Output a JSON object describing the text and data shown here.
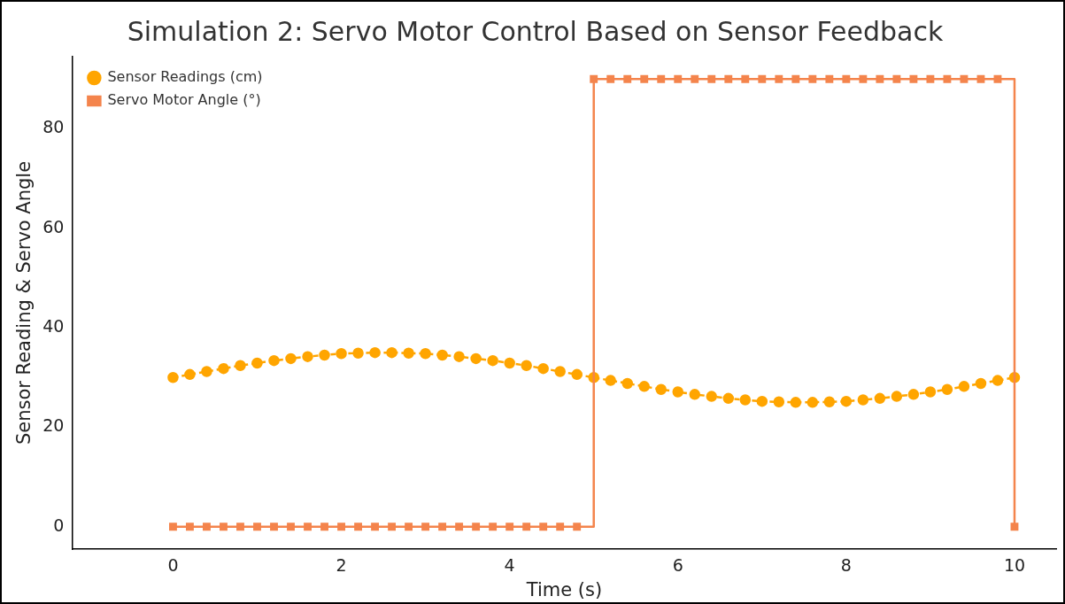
{
  "chart_data": {
    "type": "line",
    "title": "Simulation 2: Servo Motor Control Based on Sensor Feedback",
    "xlabel": "Time (s)",
    "ylabel": "Sensor Reading & Servo Angle",
    "x": [
      0,
      0.2,
      0.4,
      0.6,
      0.8,
      1,
      1.2,
      1.4,
      1.6,
      1.8,
      2,
      2.2,
      2.4,
      2.6,
      2.8,
      3,
      3.2,
      3.4,
      3.6,
      3.8,
      4,
      4.2,
      4.4,
      4.6,
      4.8,
      5,
      5.2,
      5.4,
      5.6,
      5.8,
      6,
      6.2,
      6.4,
      6.6,
      6.8,
      7,
      7.2,
      7.4,
      7.6,
      7.8,
      8,
      8.2,
      8.4,
      8.6,
      8.8,
      9,
      9.2,
      9.4,
      9.6,
      9.8,
      10
    ],
    "series": [
      {
        "name": "Sensor Readings (cm)",
        "type": "line",
        "color": "#ffa500",
        "marker": "circle",
        "line_style": "dashed",
        "values": [
          30.0,
          30.6,
          31.2,
          31.8,
          32.4,
          32.9,
          33.4,
          33.8,
          34.2,
          34.5,
          34.8,
          34.9,
          35.0,
          35.0,
          34.9,
          34.8,
          34.5,
          34.2,
          33.8,
          33.4,
          32.9,
          32.4,
          31.8,
          31.2,
          30.6,
          30.0,
          29.4,
          28.8,
          28.2,
          27.6,
          27.1,
          26.6,
          26.2,
          25.8,
          25.5,
          25.2,
          25.1,
          25.0,
          25.0,
          25.1,
          25.2,
          25.5,
          25.8,
          26.2,
          26.6,
          27.1,
          27.6,
          28.2,
          28.8,
          29.4,
          30.0
        ]
      },
      {
        "name": "Servo Motor Angle (°)",
        "type": "step",
        "color": "#f4844c",
        "marker": "square",
        "line_style": "solid",
        "values": [
          0,
          0,
          0,
          0,
          0,
          0,
          0,
          0,
          0,
          0,
          0,
          0,
          0,
          0,
          0,
          0,
          0,
          0,
          0,
          0,
          0,
          0,
          0,
          0,
          0,
          90,
          90,
          90,
          90,
          90,
          90,
          90,
          90,
          90,
          90,
          90,
          90,
          90,
          90,
          90,
          90,
          90,
          90,
          90,
          90,
          90,
          90,
          90,
          90,
          90,
          0
        ]
      }
    ],
    "xlim": [
      -1.2,
      10.5
    ],
    "xticks": [
      0,
      2,
      4,
      6,
      8,
      10
    ],
    "ylim": [
      -4.5,
      94.5
    ],
    "yticks": [
      0,
      20,
      40,
      60,
      80
    ],
    "grid": false,
    "legend": "top left"
  }
}
